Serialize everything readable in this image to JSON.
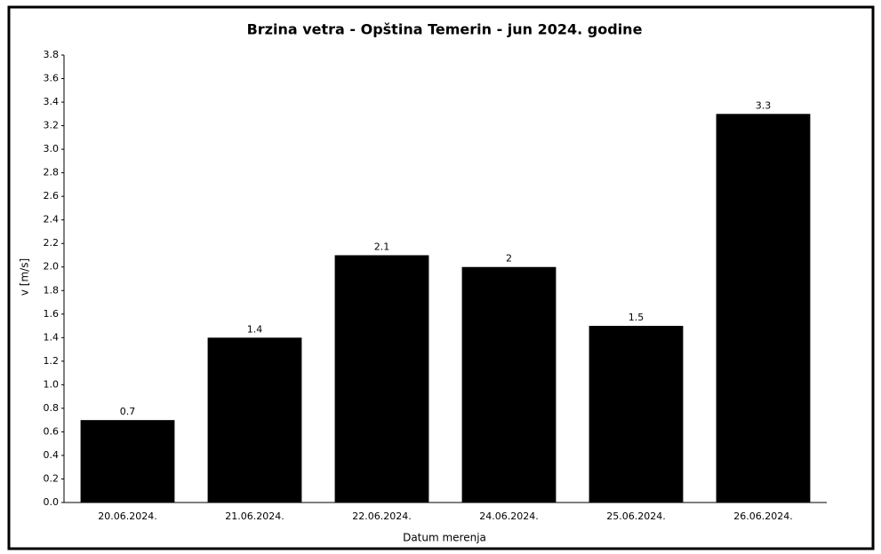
{
  "chart_data": {
    "type": "bar",
    "title": "Brzina vetra - Opština Temerin - jun 2024. godine",
    "x_label": "Datum merenja",
    "y_label": "v [m/s]",
    "categories": [
      "20.06.2024.",
      "21.06.2024.",
      "22.06.2024.",
      "24.06.2024.",
      "25.06.2024.",
      "26.06.2024."
    ],
    "values": [
      0.7,
      1.4,
      2.1,
      2,
      1.5,
      3.3
    ],
    "color": "#000000",
    "ylim": [
      0,
      3.8
    ],
    "yticks": [
      {
        "value": 0,
        "label": "0.0"
      },
      0.2,
      0.4,
      0.6,
      0.8,
      {
        "value": 1,
        "label": "1.0"
      },
      1.2,
      1.4,
      1.6,
      1.8,
      {
        "value": 2,
        "label": "2.0"
      },
      2.2,
      2.4,
      2.6,
      2.8,
      {
        "value": 3,
        "label": "3.0"
      },
      3.2,
      3.4,
      3.6,
      3.8
    ],
    "grid": false
  }
}
